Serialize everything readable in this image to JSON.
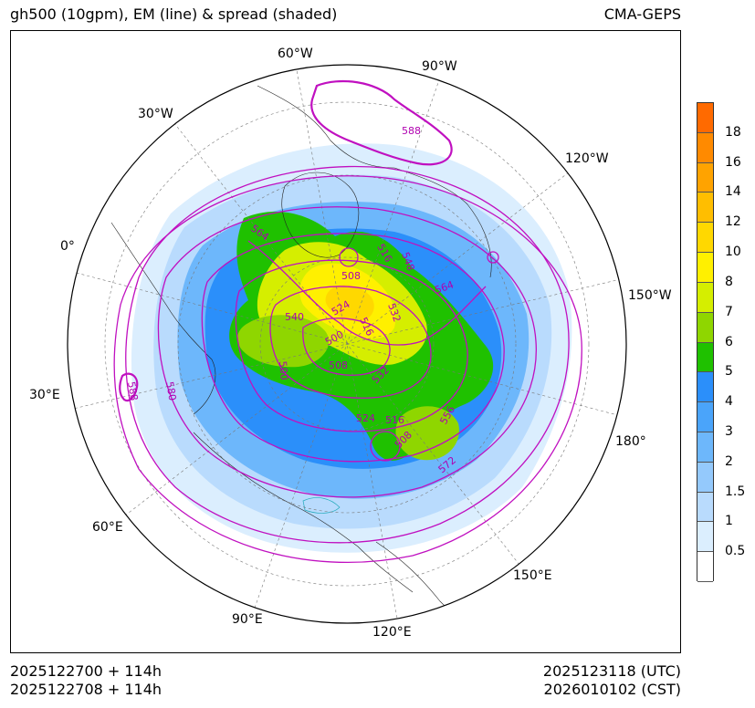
{
  "header": {
    "title_left": "gh500 (10gpm), EM (line) & spread (shaded)",
    "title_right": "CMA-GEPS"
  },
  "footer": {
    "init_utc": "2025122700 + 114h",
    "init_cst": "2025122708 + 114h",
    "valid_utc": "2025123118 (UTC)",
    "valid_cst": "2026010102 (CST)"
  },
  "map": {
    "projection": "north-polar-stereographic",
    "longitude_labels": [
      "60°W",
      "90°W",
      "30°W",
      "120°W",
      "0°",
      "150°W",
      "30°E",
      "180°",
      "60°E",
      "150°E",
      "90°E",
      "120°E"
    ],
    "contour_labels": [
      "588",
      "564",
      "516",
      "548",
      "508",
      "564",
      "540",
      "524",
      "532",
      "500",
      "516",
      "500",
      "508",
      "532",
      "588",
      "580",
      "524",
      "516",
      "556",
      "508",
      "572"
    ]
  },
  "colorbar": {
    "labels": [
      "18",
      "16",
      "14",
      "12",
      "10",
      "8",
      "7",
      "6",
      "5",
      "4",
      "3",
      "2",
      "1.5",
      "1",
      "0.5"
    ],
    "colors": [
      "#ff6a00",
      "#ff8a00",
      "#ffa300",
      "#ffbe00",
      "#ffd800",
      "#fff000",
      "#d5ee00",
      "#8fd600",
      "#1fc100",
      "#2b8ffa",
      "#4aa4fa",
      "#6db7fb",
      "#94c9fc",
      "#b9dbfd",
      "#dbeefe",
      "#ffffff"
    ]
  }
}
